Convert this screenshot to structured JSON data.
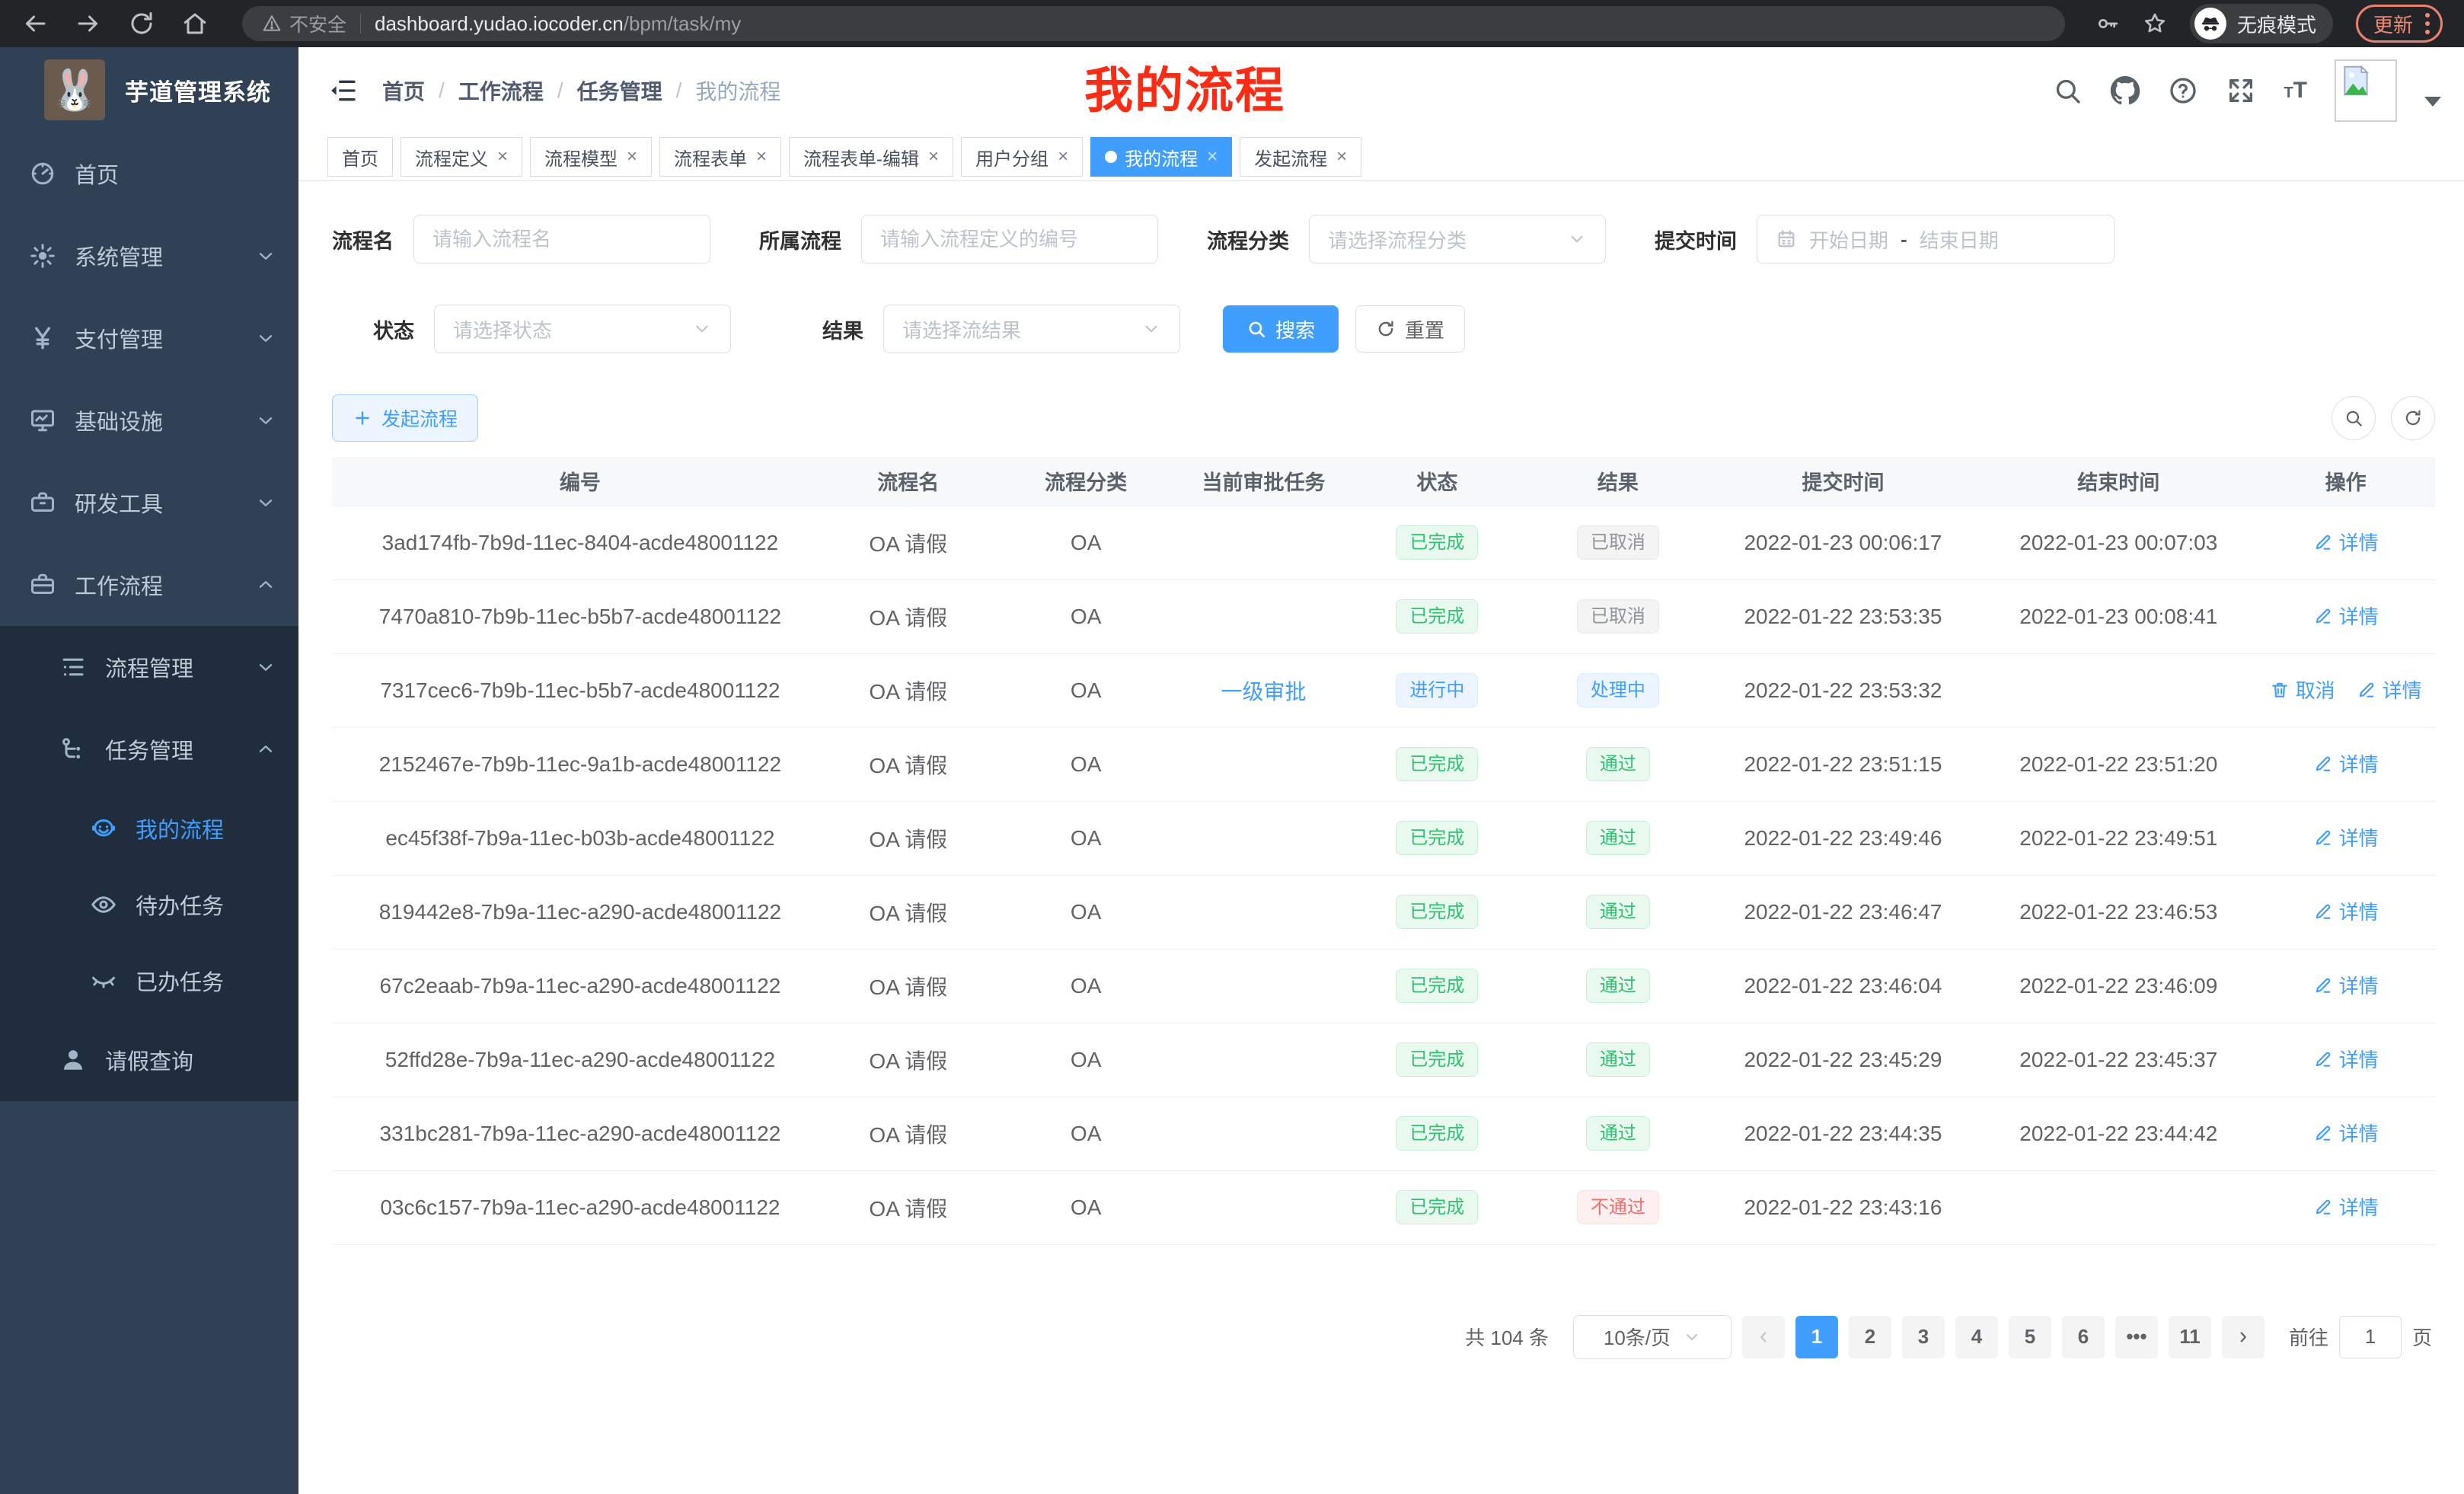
{
  "browser": {
    "security_warning": "不安全",
    "url_host": "dashboard.yudao.iocoder.cn",
    "url_path": "/bpm/task/my",
    "incognito_label": "无痕模式",
    "update_button": "更新"
  },
  "sidebar": {
    "app_title": "芋道管理系统",
    "items": [
      {
        "name": "home",
        "label": "首页",
        "icon": "dashboard-icon",
        "expandable": false,
        "expanded": false,
        "active": false
      },
      {
        "name": "system",
        "label": "系统管理",
        "icon": "gear-icon",
        "expandable": true,
        "expanded": false,
        "active": false
      },
      {
        "name": "payment",
        "label": "支付管理",
        "icon": "yen-icon",
        "expandable": true,
        "expanded": false,
        "active": false
      },
      {
        "name": "infra",
        "label": "基础设施",
        "icon": "monitor-icon",
        "expandable": true,
        "expanded": false,
        "active": false
      },
      {
        "name": "devtools",
        "label": "研发工具",
        "icon": "toolbox-icon",
        "expandable": true,
        "expanded": false,
        "active": false
      },
      {
        "name": "workflow",
        "label": "工作流程",
        "icon": "briefcase-icon",
        "expandable": true,
        "expanded": true,
        "active": false
      }
    ],
    "submenu": [
      {
        "name": "process-manage",
        "label": "流程管理",
        "icon": "list-icon",
        "level": 1,
        "expandable": true,
        "expanded": false,
        "active": false
      },
      {
        "name": "task-manage",
        "label": "任务管理",
        "icon": "flow-icon",
        "level": 1,
        "expandable": true,
        "expanded": true,
        "active": false
      },
      {
        "name": "my-process",
        "label": "我的流程",
        "icon": "robot-icon",
        "level": 2,
        "expandable": false,
        "expanded": false,
        "active": true
      },
      {
        "name": "todo-task",
        "label": "待办任务",
        "icon": "eye-icon",
        "level": 2,
        "expandable": false,
        "expanded": false,
        "active": false
      },
      {
        "name": "done-task",
        "label": "已办任务",
        "icon": "eye-closed-icon",
        "level": 2,
        "expandable": false,
        "expanded": false,
        "active": false
      },
      {
        "name": "leave-query",
        "label": "请假查询",
        "icon": "user-icon",
        "level": 1,
        "expandable": false,
        "expanded": false,
        "active": false
      }
    ]
  },
  "header": {
    "breadcrumb": [
      "首页",
      "工作流程",
      "任务管理",
      "我的流程"
    ],
    "overlay_title": "我的流程",
    "overlay_color": "#fb2c15"
  },
  "tabs": [
    {
      "name": "home",
      "label": "首页",
      "closable": false,
      "active": false
    },
    {
      "name": "process-definition",
      "label": "流程定义",
      "closable": true,
      "active": false
    },
    {
      "name": "process-model",
      "label": "流程模型",
      "closable": true,
      "active": false
    },
    {
      "name": "process-form",
      "label": "流程表单",
      "closable": true,
      "active": false
    },
    {
      "name": "process-form-edit",
      "label": "流程表单-编辑",
      "closable": true,
      "active": false
    },
    {
      "name": "user-group",
      "label": "用户分组",
      "closable": true,
      "active": false
    },
    {
      "name": "my-process",
      "label": "我的流程",
      "closable": true,
      "active": true
    },
    {
      "name": "start-process",
      "label": "发起流程",
      "closable": true,
      "active": false
    }
  ],
  "filters": {
    "name_label": "流程名",
    "name_placeholder": "请输入流程名",
    "process_label": "所属流程",
    "process_placeholder": "请输入流程定义的编号",
    "category_label": "流程分类",
    "category_placeholder": "请选择流程分类",
    "submit_time_label": "提交时间",
    "date_start_placeholder": "开始日期",
    "date_separator": "-",
    "date_end_placeholder": "结束日期",
    "status_label": "状态",
    "status_placeholder": "请选择状态",
    "result_label": "结果",
    "result_placeholder": "请选择流结果",
    "search_button": "搜索",
    "reset_button": "重置"
  },
  "toolbar": {
    "create_button": "发起流程"
  },
  "table": {
    "columns": [
      "编号",
      "流程名",
      "流程分类",
      "当前审批任务",
      "状态",
      "结果",
      "提交时间",
      "结束时间",
      "操作"
    ],
    "action_labels": {
      "cancel": "取消",
      "detail": "详情"
    },
    "rows": [
      {
        "id": "3ad174fb-7b9d-11ec-8404-acde48001122",
        "name": "OA 请假",
        "category": "OA",
        "task": "",
        "status": "已完成",
        "status_type": "success",
        "result": "已取消",
        "result_type": "info",
        "submit": "2022-01-23 00:06:17",
        "end": "2022-01-23 00:07:03",
        "actions": [
          "detail"
        ]
      },
      {
        "id": "7470a810-7b9b-11ec-b5b7-acde48001122",
        "name": "OA 请假",
        "category": "OA",
        "task": "",
        "status": "已完成",
        "status_type": "success",
        "result": "已取消",
        "result_type": "info",
        "submit": "2022-01-22 23:53:35",
        "end": "2022-01-23 00:08:41",
        "actions": [
          "detail"
        ]
      },
      {
        "id": "7317cec6-7b9b-11ec-b5b7-acde48001122",
        "name": "OA 请假",
        "category": "OA",
        "task": "一级审批",
        "status": "进行中",
        "status_type": "primary",
        "result": "处理中",
        "result_type": "primary",
        "submit": "2022-01-22 23:53:32",
        "end": "",
        "actions": [
          "cancel",
          "detail"
        ]
      },
      {
        "id": "2152467e-7b9b-11ec-9a1b-acde48001122",
        "name": "OA 请假",
        "category": "OA",
        "task": "",
        "status": "已完成",
        "status_type": "success",
        "result": "通过",
        "result_type": "success",
        "submit": "2022-01-22 23:51:15",
        "end": "2022-01-22 23:51:20",
        "actions": [
          "detail"
        ]
      },
      {
        "id": "ec45f38f-7b9a-11ec-b03b-acde48001122",
        "name": "OA 请假",
        "category": "OA",
        "task": "",
        "status": "已完成",
        "status_type": "success",
        "result": "通过",
        "result_type": "success",
        "submit": "2022-01-22 23:49:46",
        "end": "2022-01-22 23:49:51",
        "actions": [
          "detail"
        ]
      },
      {
        "id": "819442e8-7b9a-11ec-a290-acde48001122",
        "name": "OA 请假",
        "category": "OA",
        "task": "",
        "status": "已完成",
        "status_type": "success",
        "result": "通过",
        "result_type": "success",
        "submit": "2022-01-22 23:46:47",
        "end": "2022-01-22 23:46:53",
        "actions": [
          "detail"
        ]
      },
      {
        "id": "67c2eaab-7b9a-11ec-a290-acde48001122",
        "name": "OA 请假",
        "category": "OA",
        "task": "",
        "status": "已完成",
        "status_type": "success",
        "result": "通过",
        "result_type": "success",
        "submit": "2022-01-22 23:46:04",
        "end": "2022-01-22 23:46:09",
        "actions": [
          "detail"
        ]
      },
      {
        "id": "52ffd28e-7b9a-11ec-a290-acde48001122",
        "name": "OA 请假",
        "category": "OA",
        "task": "",
        "status": "已完成",
        "status_type": "success",
        "result": "通过",
        "result_type": "success",
        "submit": "2022-01-22 23:45:29",
        "end": "2022-01-22 23:45:37",
        "actions": [
          "detail"
        ]
      },
      {
        "id": "331bc281-7b9a-11ec-a290-acde48001122",
        "name": "OA 请假",
        "category": "OA",
        "task": "",
        "status": "已完成",
        "status_type": "success",
        "result": "通过",
        "result_type": "success",
        "submit": "2022-01-22 23:44:35",
        "end": "2022-01-22 23:44:42",
        "actions": [
          "detail"
        ]
      },
      {
        "id": "03c6c157-7b9a-11ec-a290-acde48001122",
        "name": "OA 请假",
        "category": "OA",
        "task": "",
        "status": "已完成",
        "status_type": "success",
        "result": "不通过",
        "result_type": "danger",
        "submit": "2022-01-22 23:43:16",
        "end": "",
        "actions": [
          "detail"
        ]
      }
    ]
  },
  "pagination": {
    "total_text": "共 104 条",
    "page_size": "10条/页",
    "pages": [
      "1",
      "2",
      "3",
      "4",
      "5",
      "6",
      "•••",
      "11"
    ],
    "active_page": "1",
    "goto_label": "前往",
    "goto_value": "1",
    "goto_suffix": "页"
  },
  "colors": {
    "primary": "#409eff",
    "success_text": "#2fc271",
    "info_text": "#909399",
    "danger_text": "#f56c6c",
    "sidebar_bg": "#304156",
    "submenu_bg": "#1f2d3d",
    "overlay_red": "#fb2c15",
    "chrome_bg": "#232427",
    "update_accent": "#ef8a76"
  }
}
